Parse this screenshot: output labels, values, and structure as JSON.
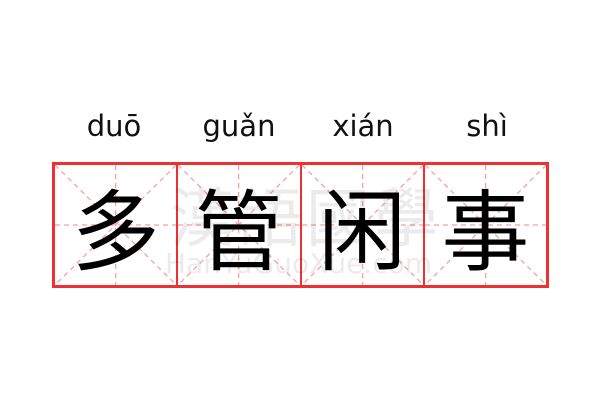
{
  "pinyin": [
    "duō",
    "guǎn",
    "xián",
    "shì"
  ],
  "characters": [
    "多",
    "管",
    "闲",
    "事"
  ],
  "watermark": {
    "chinese": "漢語國學",
    "latin": "HanYuGuoXue.com"
  },
  "colors": {
    "grid_border": "#f03030",
    "guide_lines": "#f8a0a0",
    "text": "#000000"
  }
}
